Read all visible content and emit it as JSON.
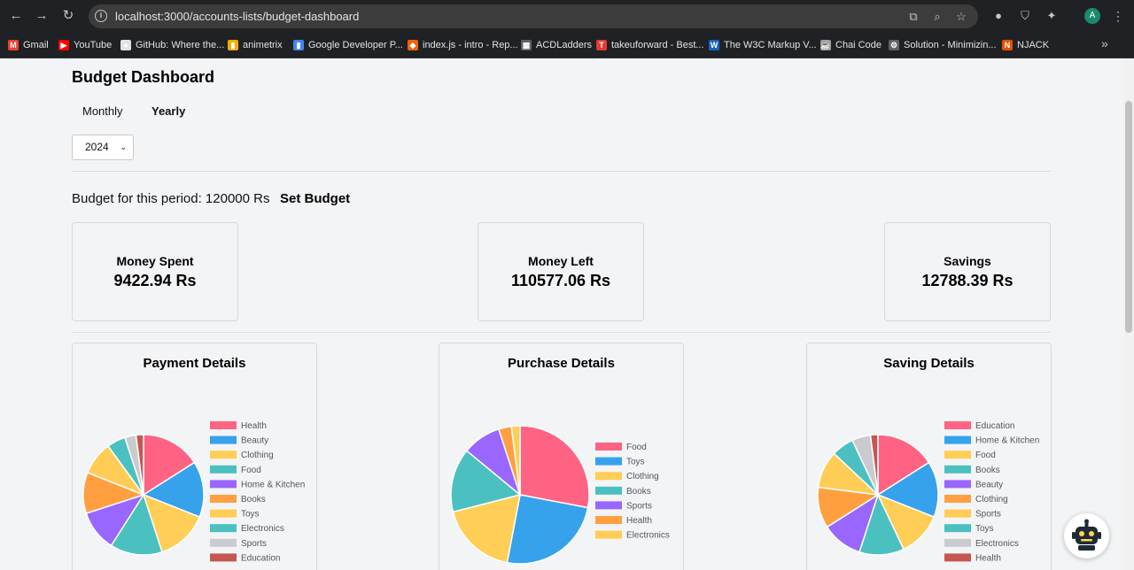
{
  "browser": {
    "url": "localhost:3000/accounts-lists/budget-dashboard",
    "profile_initial": "A"
  },
  "bookmarks": [
    {
      "label": "Gmail",
      "color": "#ea4335",
      "glyph": "M"
    },
    {
      "label": "YouTube",
      "color": "#ff0000",
      "glyph": "▶"
    },
    {
      "label": "GitHub: Where the...",
      "color": "#e3e3e3",
      "glyph": "●"
    },
    {
      "label": "animetrix",
      "color": "#f9ab00",
      "glyph": "▮"
    },
    {
      "label": "Google Developer P...",
      "color": "#4285f4",
      "glyph": "▮"
    },
    {
      "label": "index.js - intro - Rep...",
      "color": "#f26207",
      "glyph": "◆"
    },
    {
      "label": "ACDLadders",
      "color": "#5f6368",
      "glyph": "▦"
    },
    {
      "label": "takeuforward - Best...",
      "color": "#e53935",
      "glyph": "T"
    },
    {
      "label": "The W3C Markup V...",
      "color": "#1565c0",
      "glyph": "W"
    },
    {
      "label": "Chai Code",
      "color": "#9e9e9e",
      "glyph": "☕"
    },
    {
      "label": "Solution - Minimizin...",
      "color": "#5f6368",
      "glyph": "⚙"
    },
    {
      "label": "NJACK",
      "color": "#e65100",
      "glyph": "N"
    }
  ],
  "page": {
    "title": "Budget Dashboard",
    "tabs": [
      {
        "label": "Monthly",
        "active": false
      },
      {
        "label": "Yearly",
        "active": true
      }
    ],
    "year_select": "2024",
    "budget_text": "Budget for this period: 120000 Rs",
    "set_budget_label": "Set Budget",
    "stats": [
      {
        "label": "Money Spent",
        "value": "9422.94 Rs"
      },
      {
        "label": "Money Left",
        "value": "110577.06 Rs"
      },
      {
        "label": "Savings",
        "value": "12788.39 Rs"
      }
    ]
  },
  "chart_data": [
    {
      "type": "pie",
      "title": "Payment Details",
      "categories": [
        "Health",
        "Beauty",
        "Clothing",
        "Food",
        "Home & Kitchen",
        "Books",
        "Toys",
        "Electronics",
        "Sports",
        "Education"
      ],
      "values": [
        16,
        15,
        14,
        14,
        11,
        11,
        9,
        5,
        3,
        2
      ],
      "colors": [
        "#ff6384",
        "#36a2eb",
        "#ffce56",
        "#4bc0c0",
        "#9966ff",
        "#ff9f40",
        "#ffcd56",
        "#4bc0c0",
        "#c9cbcf",
        "#c45850"
      ]
    },
    {
      "type": "pie",
      "title": "Purchase Details",
      "categories": [
        "Food",
        "Toys",
        "Clothing",
        "Books",
        "Sports",
        "Health",
        "Electronics"
      ],
      "values": [
        28,
        25,
        18,
        15,
        9,
        3,
        2
      ],
      "colors": [
        "#ff6384",
        "#36a2eb",
        "#ffce56",
        "#4bc0c0",
        "#9966ff",
        "#ff9f40",
        "#ffcd56"
      ]
    },
    {
      "type": "pie",
      "title": "Saving Details",
      "categories": [
        "Education",
        "Home & Kitchen",
        "Food",
        "Books",
        "Beauty",
        "Clothing",
        "Sports",
        "Toys",
        "Electronics",
        "Health"
      ],
      "values": [
        16,
        15,
        12,
        12,
        11,
        11,
        10,
        6,
        5,
        2
      ],
      "colors": [
        "#ff6384",
        "#36a2eb",
        "#ffce56",
        "#4bc0c0",
        "#9966ff",
        "#ff9f40",
        "#ffcd56",
        "#4bc0c0",
        "#c9cbcf",
        "#c45850"
      ]
    }
  ]
}
